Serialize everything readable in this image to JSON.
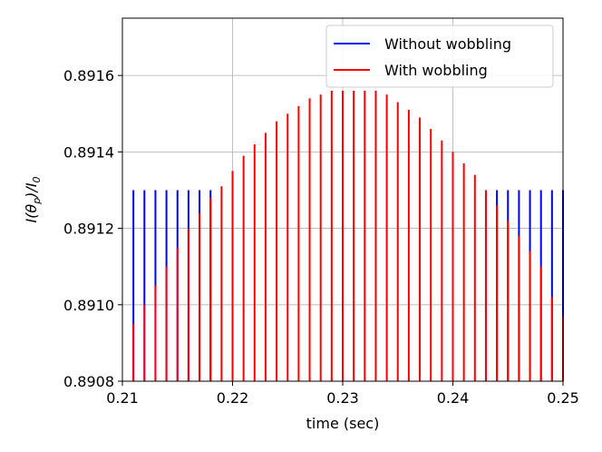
{
  "chart_data": {
    "type": "line",
    "title": "",
    "xlabel": "time (sec)",
    "ylabel_parts": {
      "main": "I(θ",
      "sub1": "p",
      "mid": ")/I",
      "sub2": "0"
    },
    "xlim": [
      0.21,
      0.25
    ],
    "ylim": [
      0.8908,
      0.89175
    ],
    "x_ticks": [
      0.21,
      0.22,
      0.23,
      0.24,
      0.25
    ],
    "x_tick_labels": [
      "0.21",
      "0.22",
      "0.23",
      "0.24",
      "0.25"
    ],
    "y_ticks": [
      0.8908,
      0.891,
      0.8912,
      0.8914,
      0.8916
    ],
    "y_tick_labels": [
      "0.8908",
      "0.8910",
      "0.8912",
      "0.8914",
      "0.8916"
    ],
    "grid": true,
    "legend_position": "top-right",
    "series": [
      {
        "name": "Without wobbling",
        "color": "#0000ff",
        "pulse_style": "vertical-lines-from-baseline",
        "t": [
          0.211,
          0.212,
          0.213,
          0.214,
          0.215,
          0.216,
          0.217,
          0.218,
          0.243,
          0.244,
          0.245,
          0.246,
          0.247,
          0.248,
          0.249,
          0.25
        ],
        "values": [
          0.8913,
          0.8913,
          0.8913,
          0.8913,
          0.8913,
          0.8913,
          0.8913,
          0.8913,
          0.8913,
          0.8913,
          0.8913,
          0.8913,
          0.8913,
          0.8913,
          0.8913,
          0.8913
        ]
      },
      {
        "name": "With wobbling",
        "color": "#ff0000",
        "pulse_style": "vertical-lines-from-baseline",
        "t": [
          0.211,
          0.212,
          0.213,
          0.214,
          0.215,
          0.216,
          0.217,
          0.218,
          0.219,
          0.22,
          0.221,
          0.222,
          0.223,
          0.224,
          0.225,
          0.226,
          0.227,
          0.228,
          0.229,
          0.23,
          0.231,
          0.232,
          0.233,
          0.234,
          0.235,
          0.236,
          0.237,
          0.238,
          0.239,
          0.24,
          0.241,
          0.242,
          0.243,
          0.244,
          0.245,
          0.246,
          0.247,
          0.248,
          0.249,
          0.25
        ],
        "values": [
          0.89095,
          0.891,
          0.89105,
          0.8911,
          0.89115,
          0.8912,
          0.89124,
          0.89128,
          0.89131,
          0.89135,
          0.89139,
          0.89142,
          0.89145,
          0.89148,
          0.8915,
          0.89152,
          0.89154,
          0.89155,
          0.89156,
          0.89156,
          0.89156,
          0.89156,
          0.89156,
          0.89155,
          0.89153,
          0.89151,
          0.89149,
          0.89146,
          0.89143,
          0.8914,
          0.89137,
          0.89134,
          0.8913,
          0.89126,
          0.89122,
          0.89118,
          0.89114,
          0.8911,
          0.89102,
          0.89097
        ]
      }
    ]
  }
}
